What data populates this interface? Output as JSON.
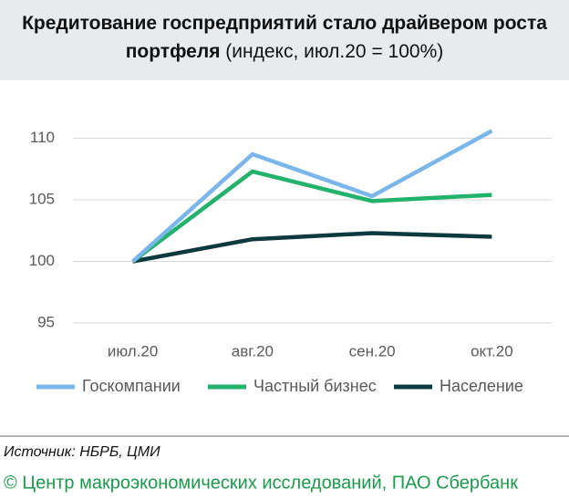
{
  "chart_data": {
    "type": "line",
    "title": "Кредитование госпредприятий стало драйвером роста портфеля",
    "subtitle": "(индекс, июл.20 = 100%)",
    "categories": [
      "июл.20",
      "авг.20",
      "сен.20",
      "окт.20"
    ],
    "series": [
      {
        "name": "Госкомпании",
        "color": "#7ab6ea",
        "values": [
          100,
          108.7,
          105.3,
          110.6
        ]
      },
      {
        "name": "Частный бизнес",
        "color": "#22b26b",
        "values": [
          100,
          107.3,
          104.9,
          105.4
        ]
      },
      {
        "name": "Население",
        "color": "#0d3a3d",
        "values": [
          100,
          101.8,
          102.3,
          102.0
        ]
      }
    ],
    "ylim": [
      95,
      112
    ],
    "yticks": [
      95,
      100,
      105,
      110
    ],
    "grid": true,
    "source": "Источник: НБРБ, ЦМИ",
    "footer": "© Центр макроэкономических исследований, ПАО Сбербанк"
  }
}
